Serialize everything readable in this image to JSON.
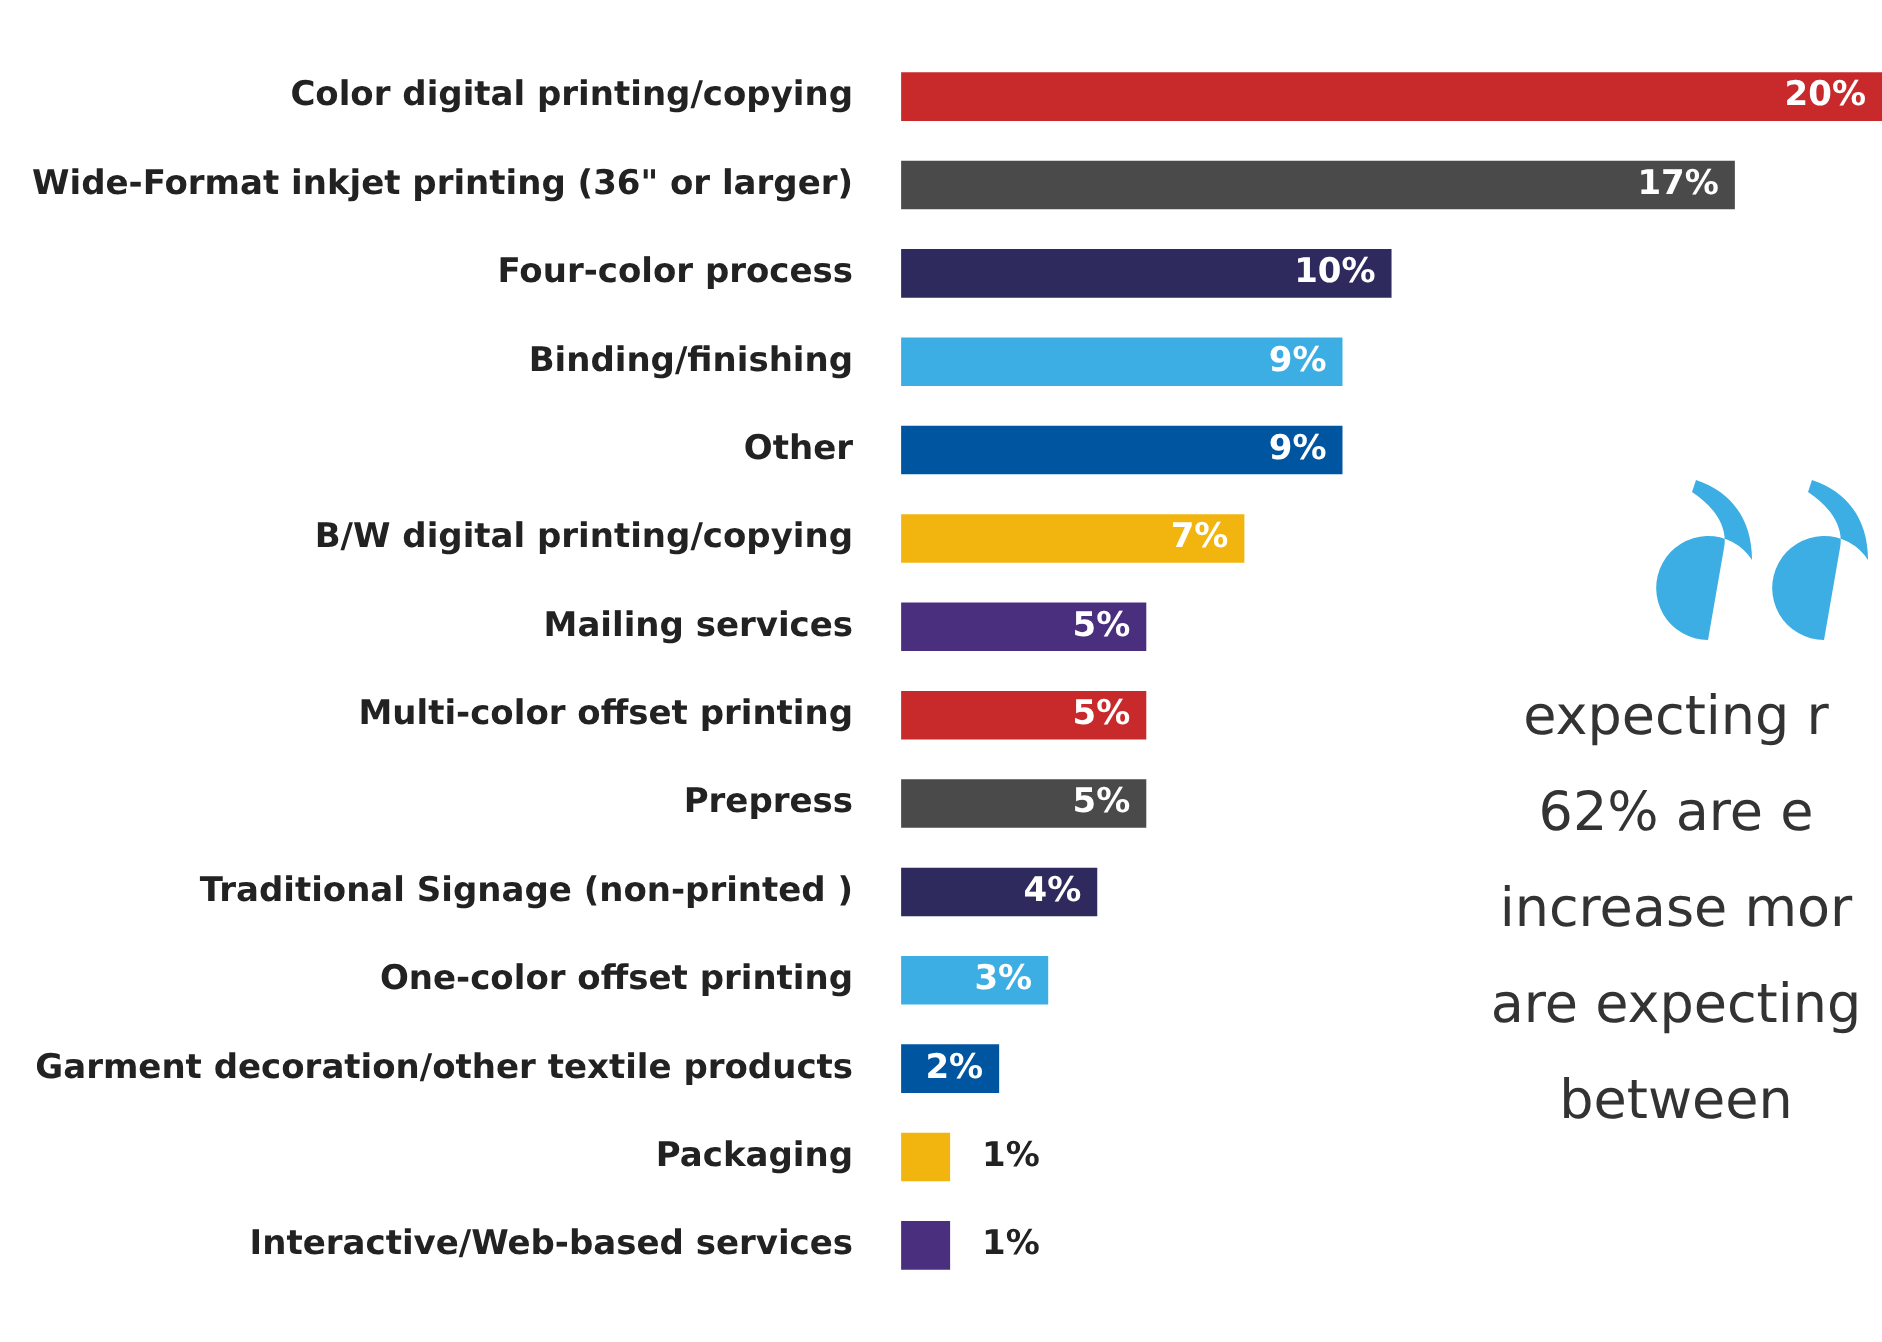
{
  "chart_data": {
    "type": "bar",
    "orientation": "horizontal",
    "categories": [
      "Color digital printing/copying",
      "Wide-Format inkjet printing (36\" or larger)",
      "Four-color process",
      "Binding/finishing",
      "Other",
      "B/W digital printing/copying",
      "Mailing services",
      "Multi-color offset printing",
      "Prepress",
      "Traditional Signage (non-printed )",
      "One-color offset printing",
      "Garment decoration/other textile products",
      "Packaging",
      "Interactive/Web-based services"
    ],
    "values": [
      20,
      17,
      10,
      9,
      9,
      7,
      5,
      5,
      5,
      4,
      3,
      2,
      1,
      1
    ],
    "value_labels": [
      "20%",
      "17%",
      "10%",
      "9%",
      "9%",
      "7%",
      "5%",
      "5%",
      "5%",
      "4%",
      "3%",
      "2%",
      "1%",
      "1%"
    ],
    "colors": [
      "#c8292b",
      "#4a4a4a",
      "#2e2a5e",
      "#3daee3",
      "#0055a0",
      "#f2b40e",
      "#4a2f7e",
      "#c8292b",
      "#4a4a4a",
      "#2e2a5e",
      "#3daee3",
      "#0055a0",
      "#f2b40e",
      "#4a2f7e"
    ],
    "annotations": [
      "expecting r",
      "62% are e",
      "increase mor",
      "are expecting",
      "between"
    ],
    "legend": false
  }
}
